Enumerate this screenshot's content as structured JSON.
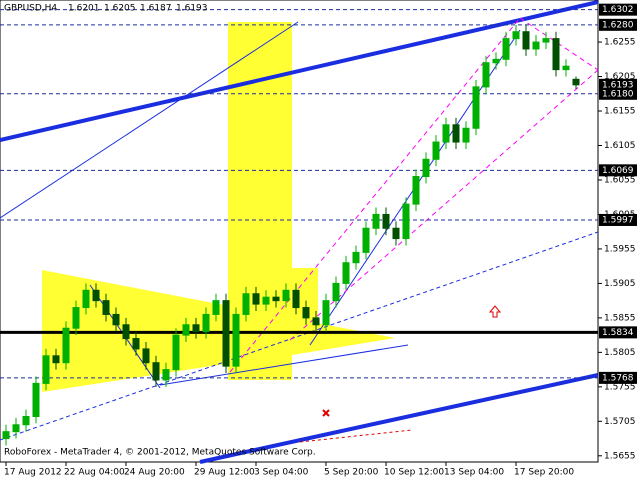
{
  "chart_data": {
    "type": "candlestick",
    "symbol": "GBPUSD,H4",
    "footer": "RoboForex - MetaTrader 4, © 2001-2012, MetaQuotes Software Corp.",
    "up_color": "#00b000",
    "down_color": "#005000",
    "open": [
      1.568,
      1.569,
      1.57,
      1.5712,
      1.576,
      1.58,
      1.579,
      1.584,
      1.587,
      1.5895,
      1.588,
      1.586,
      1.5845,
      1.5825,
      1.581,
      1.579,
      1.5765,
      1.578,
      1.583,
      1.5845,
      1.5835,
      1.586,
      1.588,
      1.5785,
      1.586,
      1.589,
      1.5875,
      1.5885,
      1.588,
      1.5895,
      1.587,
      1.5855,
      1.5845,
      1.588,
      1.5905,
      1.5935,
      1.595,
      1.5985,
      1.6005,
      1.5985,
      1.597,
      1.602,
      1.606,
      1.6085,
      1.611,
      1.6135,
      1.611,
      1.613,
      1.619,
      1.6225,
      1.623,
      1.626,
      1.627,
      1.6245,
      1.6255,
      1.626,
      1.6215,
      1.6201
    ],
    "high": [
      1.57,
      1.571,
      1.5722,
      1.577,
      1.581,
      1.581,
      1.585,
      1.588,
      1.5905,
      1.5905,
      1.589,
      1.587,
      1.5855,
      1.5835,
      1.582,
      1.58,
      1.579,
      1.584,
      1.5855,
      1.5855,
      1.587,
      1.589,
      1.589,
      1.587,
      1.59,
      1.59,
      1.5895,
      1.5895,
      1.5905,
      1.5905,
      1.588,
      1.5865,
      1.589,
      1.5915,
      1.5945,
      1.596,
      1.5995,
      1.6015,
      1.6015,
      1.5995,
      1.603,
      1.607,
      1.6095,
      1.612,
      1.6145,
      1.6145,
      1.614,
      1.62,
      1.6235,
      1.624,
      1.627,
      1.628,
      1.628,
      1.6265,
      1.627,
      1.627,
      1.623,
      1.6205
    ],
    "low": [
      1.567,
      1.568,
      1.569,
      1.5702,
      1.575,
      1.578,
      1.578,
      1.583,
      1.586,
      1.587,
      1.585,
      1.5835,
      1.5815,
      1.58,
      1.578,
      1.5755,
      1.5755,
      1.577,
      1.582,
      1.5825,
      1.5825,
      1.585,
      1.5775,
      1.5775,
      1.585,
      1.5865,
      1.5865,
      1.587,
      1.587,
      1.586,
      1.5845,
      1.5835,
      1.5835,
      1.587,
      1.5895,
      1.5925,
      1.594,
      1.5975,
      1.5975,
      1.596,
      1.596,
      1.601,
      1.605,
      1.6075,
      1.61,
      1.61,
      1.61,
      1.612,
      1.618,
      1.6215,
      1.622,
      1.625,
      1.6235,
      1.6235,
      1.6245,
      1.6205,
      1.6205,
      1.6187
    ],
    "close": [
      1.569,
      1.57,
      1.5712,
      1.576,
      1.58,
      1.579,
      1.584,
      1.587,
      1.5895,
      1.588,
      1.586,
      1.5845,
      1.5825,
      1.581,
      1.579,
      1.5765,
      1.578,
      1.583,
      1.5845,
      1.5835,
      1.586,
      1.588,
      1.5785,
      1.586,
      1.589,
      1.5875,
      1.5885,
      1.588,
      1.5895,
      1.587,
      1.5855,
      1.5845,
      1.588,
      1.5905,
      1.5935,
      1.595,
      1.5985,
      1.6005,
      1.5985,
      1.597,
      1.602,
      1.606,
      1.6085,
      1.611,
      1.6135,
      1.611,
      1.613,
      1.619,
      1.6225,
      1.623,
      1.626,
      1.627,
      1.6245,
      1.6255,
      1.626,
      1.6215,
      1.622,
      1.6193
    ],
    "ylim": [
      1.5646,
      1.6316
    ],
    "yticks": [
      1.5655,
      1.5705,
      1.5755,
      1.5805,
      1.5855,
      1.5905,
      1.5955,
      1.6005,
      1.6055,
      1.6105,
      1.6155,
      1.6205,
      1.6255
    ],
    "xticks": [
      {
        "value": 0,
        "label": "17 Aug 2012"
      },
      {
        "value": 6,
        "label": "22 Aug 04:00"
      },
      {
        "value": 12,
        "label": "24 Aug 20:00"
      },
      {
        "value": 19,
        "label": "29 Aug 12:00"
      },
      {
        "value": 25,
        "label": "3 Sep 04:00"
      },
      {
        "value": 32,
        "label": "5 Sep 20:00"
      },
      {
        "value": 38,
        "label": "10 Sep 12:00"
      },
      {
        "value": 44,
        "label": "13 Sep 04:00"
      },
      {
        "value": 51,
        "label": "17 Sep 20:00"
      }
    ],
    "levels": [
      {
        "value": 1.6302,
        "label": "1.6302",
        "style": "dashed"
      },
      {
        "value": 1.628,
        "label": "1.6280",
        "style": "dashed"
      },
      {
        "value": 1.6193,
        "label": "1.6193",
        "style": "none"
      },
      {
        "value": 1.618,
        "label": "1.6180",
        "style": "dashed"
      },
      {
        "value": 1.6069,
        "label": "1.6069",
        "style": "dashed"
      },
      {
        "value": 1.5997,
        "label": "1.5997",
        "style": "dashed"
      },
      {
        "value": 1.5834,
        "label": "1.5834",
        "style": "solid"
      },
      {
        "value": 1.5768,
        "label": "1.5768",
        "style": "dashed"
      }
    ]
  }
}
